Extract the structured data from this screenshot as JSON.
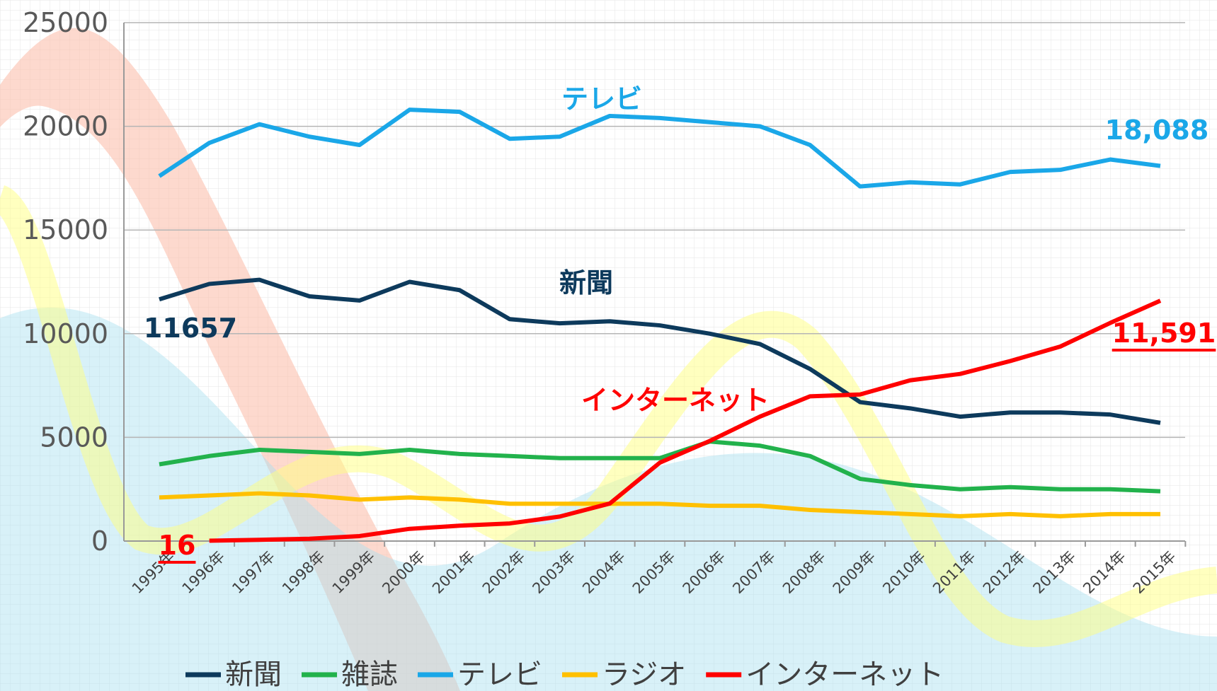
{
  "chart_data": {
    "type": "line",
    "categories": [
      "1995年",
      "1996年",
      "1997年",
      "1998年",
      "1999年",
      "2000年",
      "2001年",
      "2002年",
      "2003年",
      "2004年",
      "2005年",
      "2006年",
      "2007年",
      "2008年",
      "2009年",
      "2010年",
      "2011年",
      "2012年",
      "2013年",
      "2014年",
      "2015年"
    ],
    "ylim": [
      0,
      25000
    ],
    "yticks": [
      0,
      5000,
      10000,
      15000,
      20000,
      25000
    ],
    "grid": true,
    "legend": "bottom",
    "series": [
      {
        "name": "新聞",
        "color": "#0d3a5c",
        "values": [
          11657,
          12400,
          12600,
          11800,
          11600,
          12500,
          12100,
          10700,
          10500,
          10600,
          10400,
          10000,
          9500,
          8300,
          6700,
          6400,
          6000,
          6200,
          6200,
          6100,
          5700
        ]
      },
      {
        "name": "雑誌",
        "color": "#22b24c",
        "values": [
          3700,
          4100,
          4400,
          4300,
          4200,
          4400,
          4200,
          4100,
          4000,
          4000,
          4000,
          4800,
          4600,
          4100,
          3000,
          2700,
          2500,
          2600,
          2500,
          2500,
          2400
        ]
      },
      {
        "name": "テレビ",
        "color": "#1aa7e8",
        "values": [
          17600,
          19200,
          20100,
          19500,
          19100,
          20800,
          20700,
          19400,
          19500,
          20500,
          20400,
          20200,
          20000,
          19100,
          17100,
          17300,
          17200,
          17800,
          17900,
          18400,
          18088
        ],
        "value_labels": [
          null,
          null,
          null,
          null,
          null,
          null,
          null,
          null,
          null,
          null,
          null,
          null,
          null,
          null,
          null,
          null,
          null,
          null,
          null,
          null,
          "18,088"
        ]
      },
      {
        "name": "ラジオ",
        "color": "#ffc000",
        "values": [
          2100,
          2200,
          2300,
          2200,
          2000,
          2100,
          2000,
          1800,
          1800,
          1800,
          1800,
          1700,
          1700,
          1500,
          1400,
          1300,
          1200,
          1300,
          1200,
          1300,
          1300
        ]
      },
      {
        "name": "インターネット",
        "color": "#ff0000",
        "values": [
          null,
          16,
          60,
          110,
          240,
          590,
          740,
          850,
          1180,
          1810,
          3780,
          4830,
          6000,
          6980,
          7070,
          7750,
          8060,
          8680,
          9380,
          10520,
          11591
        ],
        "value_labels": [
          null,
          null,
          null,
          null,
          null,
          null,
          null,
          null,
          null,
          null,
          null,
          null,
          null,
          null,
          null,
          null,
          null,
          null,
          null,
          null,
          "11,591"
        ]
      }
    ]
  }
}
